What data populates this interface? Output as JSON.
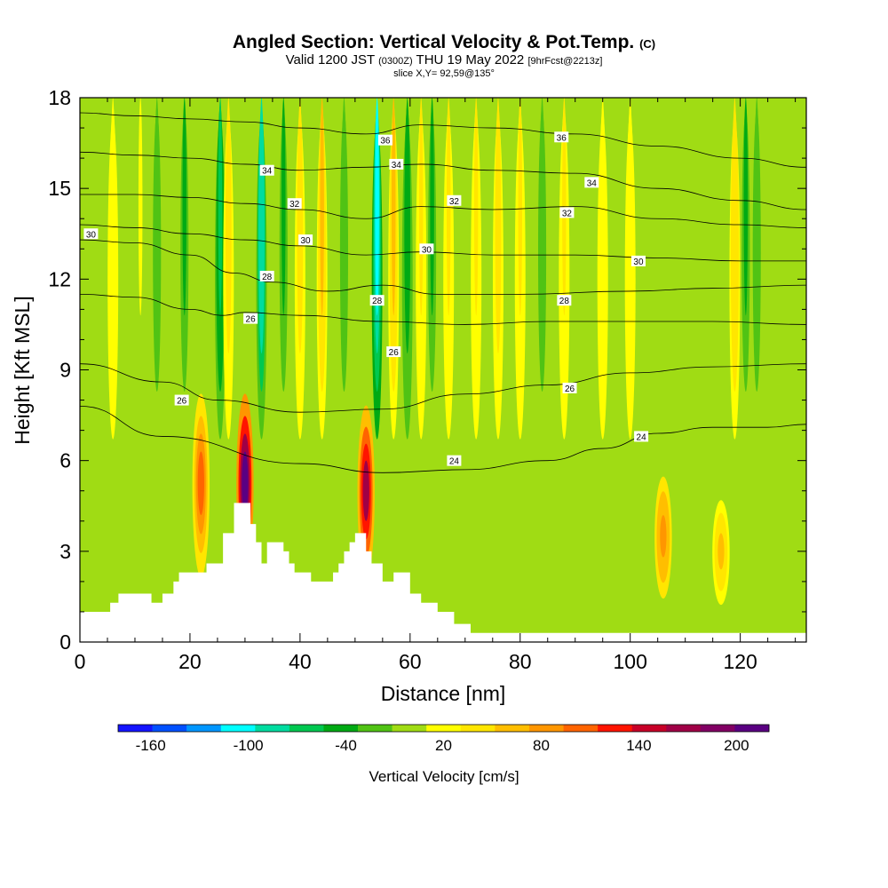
{
  "header": {
    "title_main": "Angled Section: Vertical Velocity & Pot.Temp.",
    "title_unit": "(C)",
    "valid_prefix": "Valid 1200 JST",
    "valid_z": "(0300Z)",
    "valid_date": "THU 19 May 2022",
    "forecast": "[9hrFcst@2213z]",
    "slice": "slice X,Y= 92,59@135°"
  },
  "colors": {
    "terrain": "#ffffff",
    "contour": "#000000"
  },
  "chart_data": {
    "type": "heatmap",
    "xlabel": "Distance [nm]",
    "ylabel": "Height [Kft MSL]",
    "xlim": [
      0,
      132
    ],
    "ylim": [
      0,
      18
    ],
    "xticks": [
      0,
      20,
      40,
      60,
      80,
      100,
      120
    ],
    "yticks": [
      0,
      3,
      6,
      9,
      12,
      15,
      18
    ],
    "colorbar": {
      "label": "Vertical Velocity [cm/s]",
      "ticks": [
        -160,
        -100,
        -40,
        20,
        80,
        140,
        200
      ],
      "min": -180,
      "max": 220,
      "colors": [
        "#1414ff",
        "#0050ff",
        "#0096ff",
        "#00ffff",
        "#00dca0",
        "#00c850",
        "#00aa14",
        "#50c314",
        "#a0dc14",
        "#ffff00",
        "#ffe600",
        "#ffbe00",
        "#ff9600",
        "#ff6400",
        "#ff1400",
        "#c80028",
        "#a00046",
        "#820064",
        "#5a0082"
      ]
    },
    "velocity_columns": [
      {
        "x": 6,
        "peak": 25,
        "top": 18
      },
      {
        "x": 11,
        "peak": 5,
        "top": 18
      },
      {
        "x": 14,
        "peak": -35,
        "top": 18
      },
      {
        "x": 19,
        "peak": -40,
        "top": 18
      },
      {
        "x": 22,
        "peak": 95,
        "top": 10.5
      },
      {
        "x": 25.5,
        "peak": -70,
        "top": 18
      },
      {
        "x": 27,
        "peak": 40,
        "top": 18
      },
      {
        "x": 30,
        "peak": 205,
        "top": 10.5
      },
      {
        "x": 33,
        "peak": -100,
        "top": 18
      },
      {
        "x": 37,
        "peak": -40,
        "top": 18
      },
      {
        "x": 40,
        "peak": 40,
        "top": 18
      },
      {
        "x": 44,
        "peak": 55,
        "top": 18
      },
      {
        "x": 48,
        "peak": -30,
        "top": 18
      },
      {
        "x": 52,
        "peak": 155,
        "top": 10
      },
      {
        "x": 54,
        "peak": -110,
        "top": 18
      },
      {
        "x": 57,
        "peak": 50,
        "top": 18
      },
      {
        "x": 59.5,
        "peak": -50,
        "top": 18
      },
      {
        "x": 62,
        "peak": 30,
        "top": 18
      },
      {
        "x": 64,
        "peak": -40,
        "top": 18
      },
      {
        "x": 67,
        "peak": 30,
        "top": 18
      },
      {
        "x": 72,
        "peak": 30,
        "top": 18
      },
      {
        "x": 76,
        "peak": 35,
        "top": 18
      },
      {
        "x": 80,
        "peak": 30,
        "top": 18
      },
      {
        "x": 84,
        "peak": -30,
        "top": 18
      },
      {
        "x": 88,
        "peak": 30,
        "top": 18
      },
      {
        "x": 95,
        "peak": 25,
        "top": 18
      },
      {
        "x": 100,
        "peak": 20,
        "top": 18
      },
      {
        "x": 106,
        "peak": 80,
        "top": 7
      },
      {
        "x": 116.5,
        "peak": 55,
        "top": 6
      },
      {
        "x": 119,
        "peak": 45,
        "top": 18
      },
      {
        "x": 121,
        "peak": -40,
        "top": 18
      },
      {
        "x": 123,
        "peak": -30,
        "top": 18
      }
    ],
    "terrain": [
      [
        0,
        1.0
      ],
      [
        5.5,
        1.0
      ],
      [
        5.5,
        1.3
      ],
      [
        7,
        1.3
      ],
      [
        7,
        1.6
      ],
      [
        13,
        1.6
      ],
      [
        13,
        1.3
      ],
      [
        15,
        1.3
      ],
      [
        15,
        1.6
      ],
      [
        17,
        1.6
      ],
      [
        17,
        2.0
      ],
      [
        18,
        2.0
      ],
      [
        18,
        2.3
      ],
      [
        23,
        2.3
      ],
      [
        23,
        2.6
      ],
      [
        26,
        2.6
      ],
      [
        26,
        3.6
      ],
      [
        28,
        3.6
      ],
      [
        28,
        4.6
      ],
      [
        31,
        4.6
      ],
      [
        31,
        3.9
      ],
      [
        32,
        3.9
      ],
      [
        32,
        3.3
      ],
      [
        33,
        3.3
      ],
      [
        33,
        2.6
      ],
      [
        34,
        2.6
      ],
      [
        34,
        3.3
      ],
      [
        37,
        3.3
      ],
      [
        37,
        3.0
      ],
      [
        38,
        3.0
      ],
      [
        38,
        2.6
      ],
      [
        39,
        2.6
      ],
      [
        39,
        2.3
      ],
      [
        42,
        2.3
      ],
      [
        42,
        2.0
      ],
      [
        46,
        2.0
      ],
      [
        46,
        2.3
      ],
      [
        47,
        2.3
      ],
      [
        47,
        2.6
      ],
      [
        48,
        2.6
      ],
      [
        48,
        3.0
      ],
      [
        49,
        3.0
      ],
      [
        49,
        3.3
      ],
      [
        50,
        3.3
      ],
      [
        50,
        3.6
      ],
      [
        52,
        3.6
      ],
      [
        52,
        3.0
      ],
      [
        53,
        3.0
      ],
      [
        53,
        2.6
      ],
      [
        55,
        2.6
      ],
      [
        55,
        2.0
      ],
      [
        57,
        2.0
      ],
      [
        57,
        2.3
      ],
      [
        60,
        2.3
      ],
      [
        60,
        1.6
      ],
      [
        62,
        1.6
      ],
      [
        62,
        1.3
      ],
      [
        65,
        1.3
      ],
      [
        65,
        1.0
      ],
      [
        68,
        1.0
      ],
      [
        68,
        0.6
      ],
      [
        71,
        0.6
      ],
      [
        71,
        0.3
      ],
      [
        132,
        0.3
      ],
      [
        132,
        0
      ]
    ],
    "isentropes": [
      {
        "value": 24,
        "points": [
          [
            0,
            7.8
          ],
          [
            15,
            6.8
          ],
          [
            40,
            5.9
          ],
          [
            55,
            5.6
          ],
          [
            70,
            5.7
          ],
          [
            85,
            6.0
          ],
          [
            95,
            6.4
          ],
          [
            105,
            6.9
          ],
          [
            115,
            7.1
          ],
          [
            125,
            7.1
          ],
          [
            132,
            7.2
          ]
        ]
      },
      {
        "value": 26,
        "points": [
          [
            0,
            9.2
          ],
          [
            15,
            8.6
          ],
          [
            25,
            8.0
          ],
          [
            40,
            7.6
          ],
          [
            55,
            7.7
          ],
          [
            70,
            8.2
          ],
          [
            85,
            8.5
          ],
          [
            100,
            8.9
          ],
          [
            115,
            9.1
          ],
          [
            132,
            9.2
          ]
        ]
      },
      {
        "value": 26,
        "points": [
          [
            0,
            11.5
          ],
          [
            10,
            11.4
          ],
          [
            20,
            11.0
          ],
          [
            26,
            10.8
          ],
          [
            30,
            10.9
          ],
          [
            40,
            10.8
          ],
          [
            55,
            10.6
          ],
          [
            70,
            10.5
          ],
          [
            85,
            10.6
          ],
          [
            100,
            10.6
          ],
          [
            115,
            10.6
          ],
          [
            132,
            10.5
          ]
        ]
      },
      {
        "value": 28,
        "points": [
          [
            0,
            13.3
          ],
          [
            10,
            13.2
          ],
          [
            20,
            12.8
          ],
          [
            28,
            12.2
          ],
          [
            35,
            11.9
          ],
          [
            45,
            11.6
          ],
          [
            55,
            11.8
          ],
          [
            65,
            11.5
          ],
          [
            80,
            11.5
          ],
          [
            100,
            11.6
          ],
          [
            115,
            11.7
          ],
          [
            132,
            11.8
          ]
        ]
      },
      {
        "value": 30,
        "points": [
          [
            0,
            13.8
          ],
          [
            10,
            13.7
          ],
          [
            20,
            13.5
          ],
          [
            30,
            13.3
          ],
          [
            40,
            13.1
          ],
          [
            52,
            12.8
          ],
          [
            62,
            12.9
          ],
          [
            75,
            12.8
          ],
          [
            90,
            12.8
          ],
          [
            105,
            12.7
          ],
          [
            120,
            12.6
          ],
          [
            132,
            12.6
          ]
        ]
      },
      {
        "value": 32,
        "points": [
          [
            0,
            14.8
          ],
          [
            10,
            14.8
          ],
          [
            20,
            14.7
          ],
          [
            30,
            14.5
          ],
          [
            40,
            14.3
          ],
          [
            52,
            14.0
          ],
          [
            62,
            14.4
          ],
          [
            75,
            14.3
          ],
          [
            90,
            14.4
          ],
          [
            105,
            14.0
          ],
          [
            120,
            13.8
          ],
          [
            132,
            13.7
          ]
        ]
      },
      {
        "value": 34,
        "points": [
          [
            0,
            16.2
          ],
          [
            10,
            16.1
          ],
          [
            20,
            16.0
          ],
          [
            30,
            15.8
          ],
          [
            40,
            15.6
          ],
          [
            52,
            15.7
          ],
          [
            62,
            15.8
          ],
          [
            75,
            15.6
          ],
          [
            90,
            15.5
          ],
          [
            105,
            15.0
          ],
          [
            120,
            14.6
          ],
          [
            132,
            14.3
          ]
        ]
      },
      {
        "value": 36,
        "points": [
          [
            0,
            17.5
          ],
          [
            10,
            17.4
          ],
          [
            20,
            17.3
          ],
          [
            30,
            17.2
          ],
          [
            40,
            17.0
          ],
          [
            52,
            16.8
          ],
          [
            62,
            17.1
          ],
          [
            75,
            17.0
          ],
          [
            90,
            16.8
          ],
          [
            105,
            16.4
          ],
          [
            120,
            16.0
          ],
          [
            132,
            15.7
          ]
        ]
      }
    ],
    "contour_labels": [
      {
        "text": "36",
        "x": 55.5,
        "y": 16.6
      },
      {
        "text": "36",
        "x": 87.5,
        "y": 16.7
      },
      {
        "text": "34",
        "x": 34,
        "y": 15.6
      },
      {
        "text": "34",
        "x": 57.5,
        "y": 15.8
      },
      {
        "text": "34",
        "x": 93,
        "y": 15.2
      },
      {
        "text": "32",
        "x": 39,
        "y": 14.5
      },
      {
        "text": "32",
        "x": 68,
        "y": 14.6
      },
      {
        "text": "32",
        "x": 88.5,
        "y": 14.2
      },
      {
        "text": "30",
        "x": 41,
        "y": 13.3
      },
      {
        "text": "30",
        "x": 63,
        "y": 13.0
      },
      {
        "text": "30",
        "x": 101.5,
        "y": 12.6
      },
      {
        "text": "30",
        "x": 2,
        "y": 13.5
      },
      {
        "text": "28",
        "x": 34,
        "y": 12.1
      },
      {
        "text": "28",
        "x": 54,
        "y": 11.3
      },
      {
        "text": "28",
        "x": 88,
        "y": 11.3
      },
      {
        "text": "26",
        "x": 31,
        "y": 10.7
      },
      {
        "text": "26",
        "x": 57,
        "y": 9.6
      },
      {
        "text": "26",
        "x": 89,
        "y": 8.4
      },
      {
        "text": "26",
        "x": 18.5,
        "y": 8.0
      },
      {
        "text": "24",
        "x": 68,
        "y": 6.0
      },
      {
        "text": "24",
        "x": 102,
        "y": 6.8
      }
    ]
  }
}
